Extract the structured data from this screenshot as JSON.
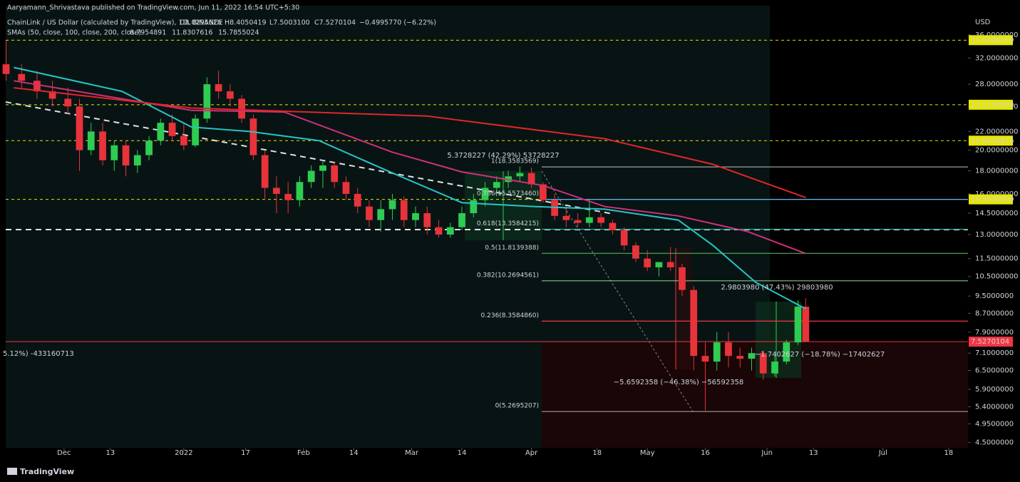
{
  "header": {
    "publisher": "Aaryamann_Shrivastava published on TradingView.com, Jun 11, 2022 16:54 UTC+5:30",
    "symbol": "ChainLink / US Dollar (calculated by TradingView), 1D, BINANCE",
    "ohlc": [
      "O8.0295626",
      "H8.4050419",
      "L7.5003100",
      "C7.5270104",
      "−0.4995770 (−6.22%)"
    ],
    "indicator": "SMAs (50, close, 100, close, 200, close)",
    "indicator_values": [
      "8.7954891",
      "11.8307616",
      "15.7855024"
    ],
    "currency": "USD",
    "logo": "TradingView"
  },
  "chart_data": {
    "type": "candlestick",
    "log_scale": true,
    "xlim": [
      -15.1,
      234
    ],
    "ylim": [
      4.38,
      41.8
    ],
    "xticks": [
      {
        "value": 0,
        "label": "Dec"
      },
      {
        "value": 12,
        "label": "13"
      },
      {
        "value": 31,
        "label": "2022"
      },
      {
        "value": 47,
        "label": "17"
      },
      {
        "value": 62,
        "label": "Feb"
      },
      {
        "value": 75,
        "label": "14"
      },
      {
        "value": 90,
        "label": "Mar"
      },
      {
        "value": 103,
        "label": "14"
      },
      {
        "value": 121,
        "label": "Apr"
      },
      {
        "value": 138,
        "label": "18"
      },
      {
        "value": 151,
        "label": "May"
      },
      {
        "value": 166,
        "label": "16"
      },
      {
        "value": 182,
        "label": "Jun"
      },
      {
        "value": 194,
        "label": "13"
      },
      {
        "value": 212,
        "label": "Jul"
      },
      {
        "value": 229,
        "label": "18"
      }
    ],
    "yticks": [
      {
        "value": 36,
        "label": "36.0000000"
      },
      {
        "value": 32,
        "label": "32.0000000"
      },
      {
        "value": 28,
        "label": "28.0000000"
      },
      {
        "value": 25,
        "label": "25.0000000"
      },
      {
        "value": 22,
        "label": "22.0000000"
      },
      {
        "value": 20,
        "label": "20.0000000"
      },
      {
        "value": 18,
        "label": "18.0000000"
      },
      {
        "value": 16,
        "label": "16.0000000"
      },
      {
        "value": 14.5,
        "label": "14.5000000"
      },
      {
        "value": 13,
        "label": "13.0000000"
      },
      {
        "value": 11.5,
        "label": "11.5000000"
      },
      {
        "value": 10.5,
        "label": "10.5000000"
      },
      {
        "value": 9.5,
        "label": "9.5000000"
      },
      {
        "value": 8.7,
        "label": "8.7000000"
      },
      {
        "value": 7.9,
        "label": "7.9000000"
      },
      {
        "value": 7.1,
        "label": "7.1000000"
      },
      {
        "value": 6.5,
        "label": "6.5000000"
      },
      {
        "value": 5.9,
        "label": "5.9000000"
      },
      {
        "value": 5.4,
        "label": "5.4000000"
      },
      {
        "value": 4.95,
        "label": "4.9500000"
      },
      {
        "value": 4.5,
        "label": "4.5000000"
      }
    ],
    "up_color": "#2ecc52",
    "down_color": "#e8333b",
    "x": [
      -15,
      -11,
      -7,
      -3,
      1,
      4,
      7,
      10,
      13,
      16,
      19,
      22,
      25,
      28,
      31,
      34,
      37,
      40,
      43,
      46,
      49,
      52,
      55,
      58,
      61,
      64,
      67,
      70,
      73,
      76,
      79,
      82,
      85,
      88,
      91,
      94,
      97,
      100,
      103,
      106,
      109,
      112,
      115,
      118,
      121,
      124,
      127,
      130,
      133,
      136,
      139,
      142,
      145,
      148,
      151,
      154,
      157,
      160,
      163,
      166,
      169,
      172,
      175,
      178,
      181,
      184,
      187,
      190,
      192
    ],
    "open": [
      31,
      29.5,
      28.5,
      27,
      26,
      25,
      20,
      22,
      19,
      20.5,
      18.5,
      19.5,
      21,
      23,
      21.5,
      20.5,
      23.5,
      28,
      27,
      26,
      23.5,
      19.5,
      16.5,
      16,
      15.5,
      17,
      18,
      18.5,
      17,
      16,
      15,
      14,
      14.8,
      15.5,
      14,
      14.5,
      13.5,
      13,
      13.5,
      14.5,
      15.5,
      16.5,
      17,
      17.5,
      17.8,
      16.8,
      15.5,
      14.3,
      14,
      13.8,
      14.2,
      13.8,
      13.3,
      12.3,
      11.5,
      11,
      11.3,
      11,
      9.8,
      7,
      6.8,
      7.5,
      7,
      6.9,
      7.1,
      6.4,
      6.8,
      7.5,
      9
    ],
    "high": [
      35,
      31,
      30,
      28.5,
      27.5,
      26,
      23,
      23,
      21,
      21,
      20,
      21.5,
      23.5,
      24,
      23,
      24,
      29,
      30,
      28,
      26.5,
      24,
      20,
      17.5,
      17,
      17.5,
      18.5,
      19,
      18.8,
      17.5,
      16.5,
      15.5,
      15.5,
      16,
      15.8,
      15,
      15,
      14,
      13.8,
      15,
      16,
      17,
      17.5,
      18,
      18.4,
      18.3,
      17,
      16,
      15,
      14.5,
      15.5,
      14.5,
      14,
      13.5,
      12.5,
      12,
      11.2,
      12.2,
      11.2,
      10,
      7.5,
      7.9,
      7.9,
      7.3,
      7.3,
      7.2,
      7,
      7.6,
      9.3,
      9.4
    ],
    "low": [
      28.5,
      27.5,
      26,
      25,
      24,
      18,
      19.5,
      18.5,
      18,
      17.5,
      17.8,
      19,
      20.5,
      21,
      20,
      20.3,
      23,
      26,
      25,
      23,
      19,
      15.5,
      14.5,
      14.5,
      15,
      16.5,
      16.5,
      16.5,
      15.5,
      14.5,
      13.5,
      13.2,
      14,
      13.5,
      13.5,
      13,
      12.8,
      12.8,
      13.3,
      14.2,
      15,
      16,
      16.5,
      17,
      16.5,
      15.3,
      14,
      13.5,
      13.5,
      13.5,
      13.5,
      13,
      12,
      11.3,
      10.8,
      10.5,
      10.8,
      9.5,
      6.5,
      5.3,
      6.5,
      6.6,
      6.6,
      6.5,
      6.2,
      6.3,
      6.7,
      7.4,
      7.5
    ],
    "close": [
      29.5,
      28.5,
      27,
      26,
      25,
      20,
      22,
      19,
      20.5,
      18.5,
      19.5,
      21,
      23,
      21.5,
      20.5,
      23.5,
      28,
      27,
      26,
      23.5,
      19.5,
      16.5,
      16,
      15.5,
      17,
      18,
      18.5,
      17,
      16,
      15,
      14,
      14.8,
      15.5,
      14,
      14.5,
      13.5,
      13,
      13.5,
      14.5,
      15.5,
      16.5,
      17,
      17.5,
      17.8,
      16.8,
      15.5,
      14.3,
      14,
      13.8,
      14.2,
      13.8,
      13.3,
      12.3,
      11.5,
      11,
      11.3,
      11,
      9.8,
      7,
      6.8,
      7.5,
      7,
      6.9,
      7.1,
      6.4,
      6.8,
      7.5,
      9,
      7.53
    ],
    "series": [
      {
        "name": "SMA 50",
        "color": "#26c6c6",
        "x": [
          -13,
          15,
          33,
          48,
          66,
          85,
          103,
          122,
          140,
          159,
          168,
          179,
          192
        ],
        "values": [
          30.5,
          27,
          22.5,
          22,
          21,
          17.8,
          15.3,
          15,
          14.8,
          14,
          12.3,
          10.2,
          8.9
        ]
      },
      {
        "name": "SMA 100",
        "color": "#d0307a",
        "x": [
          -13,
          33,
          57,
          85,
          103,
          124,
          140,
          159,
          177,
          192
        ],
        "values": [
          28.5,
          24.5,
          24.3,
          19.8,
          17.9,
          16.7,
          15,
          14.3,
          13.2,
          11.8
        ]
      },
      {
        "name": "SMA 200",
        "color": "#e0262a",
        "x": [
          -13,
          33,
          94,
          140,
          168,
          192
        ],
        "values": [
          27.5,
          24.8,
          23.8,
          21.2,
          18.6,
          15.7
        ]
      }
    ],
    "levels": [
      {
        "value": 35.0608249,
        "color": "#e6e600"
      },
      {
        "value": 25.21589,
        "label": "25.2158900",
        "color": "#e6e600"
      },
      {
        "value": 20.9934876,
        "color": "#e6e600"
      },
      {
        "value": 15.56,
        "label": "15.5600000",
        "color": "#e6e600"
      }
    ],
    "fib_levels": [
      {
        "value": 18.3583569,
        "label": "1(18.3583569)",
        "color": "#9e9e9e"
      },
      {
        "value": 15.557346,
        "label": "0.786(15.5573460)",
        "color": "#64b5f6"
      },
      {
        "value": 13.3584215,
        "label": "0.618(13.3584215)",
        "color": "#26a69a"
      },
      {
        "value": 11.8139388,
        "label": "0.5(11.8139388)",
        "color": "#4caf50"
      },
      {
        "value": 10.2694561,
        "label": "0.382(10.2694561)",
        "color": "#81c784"
      },
      {
        "value": 8.358486,
        "label": "0.236(8.3584860)",
        "color": "#f23645"
      },
      {
        "value": 5.2695207,
        "label": "0(5.2695207)",
        "color": "#9e9e9e"
      }
    ],
    "last_price": {
      "value": 7.5270104,
      "color": "#f23645"
    },
    "annotations": [
      "5.3728227 (42.29%) 53728227",
      "2.9803980 (47.43%) 29803980",
      "−1.7402627 (−18.78%) −17402627",
      "−5.6592358 (−46.38%) −56592358",
      "5.12%) -433160713"
    ]
  }
}
